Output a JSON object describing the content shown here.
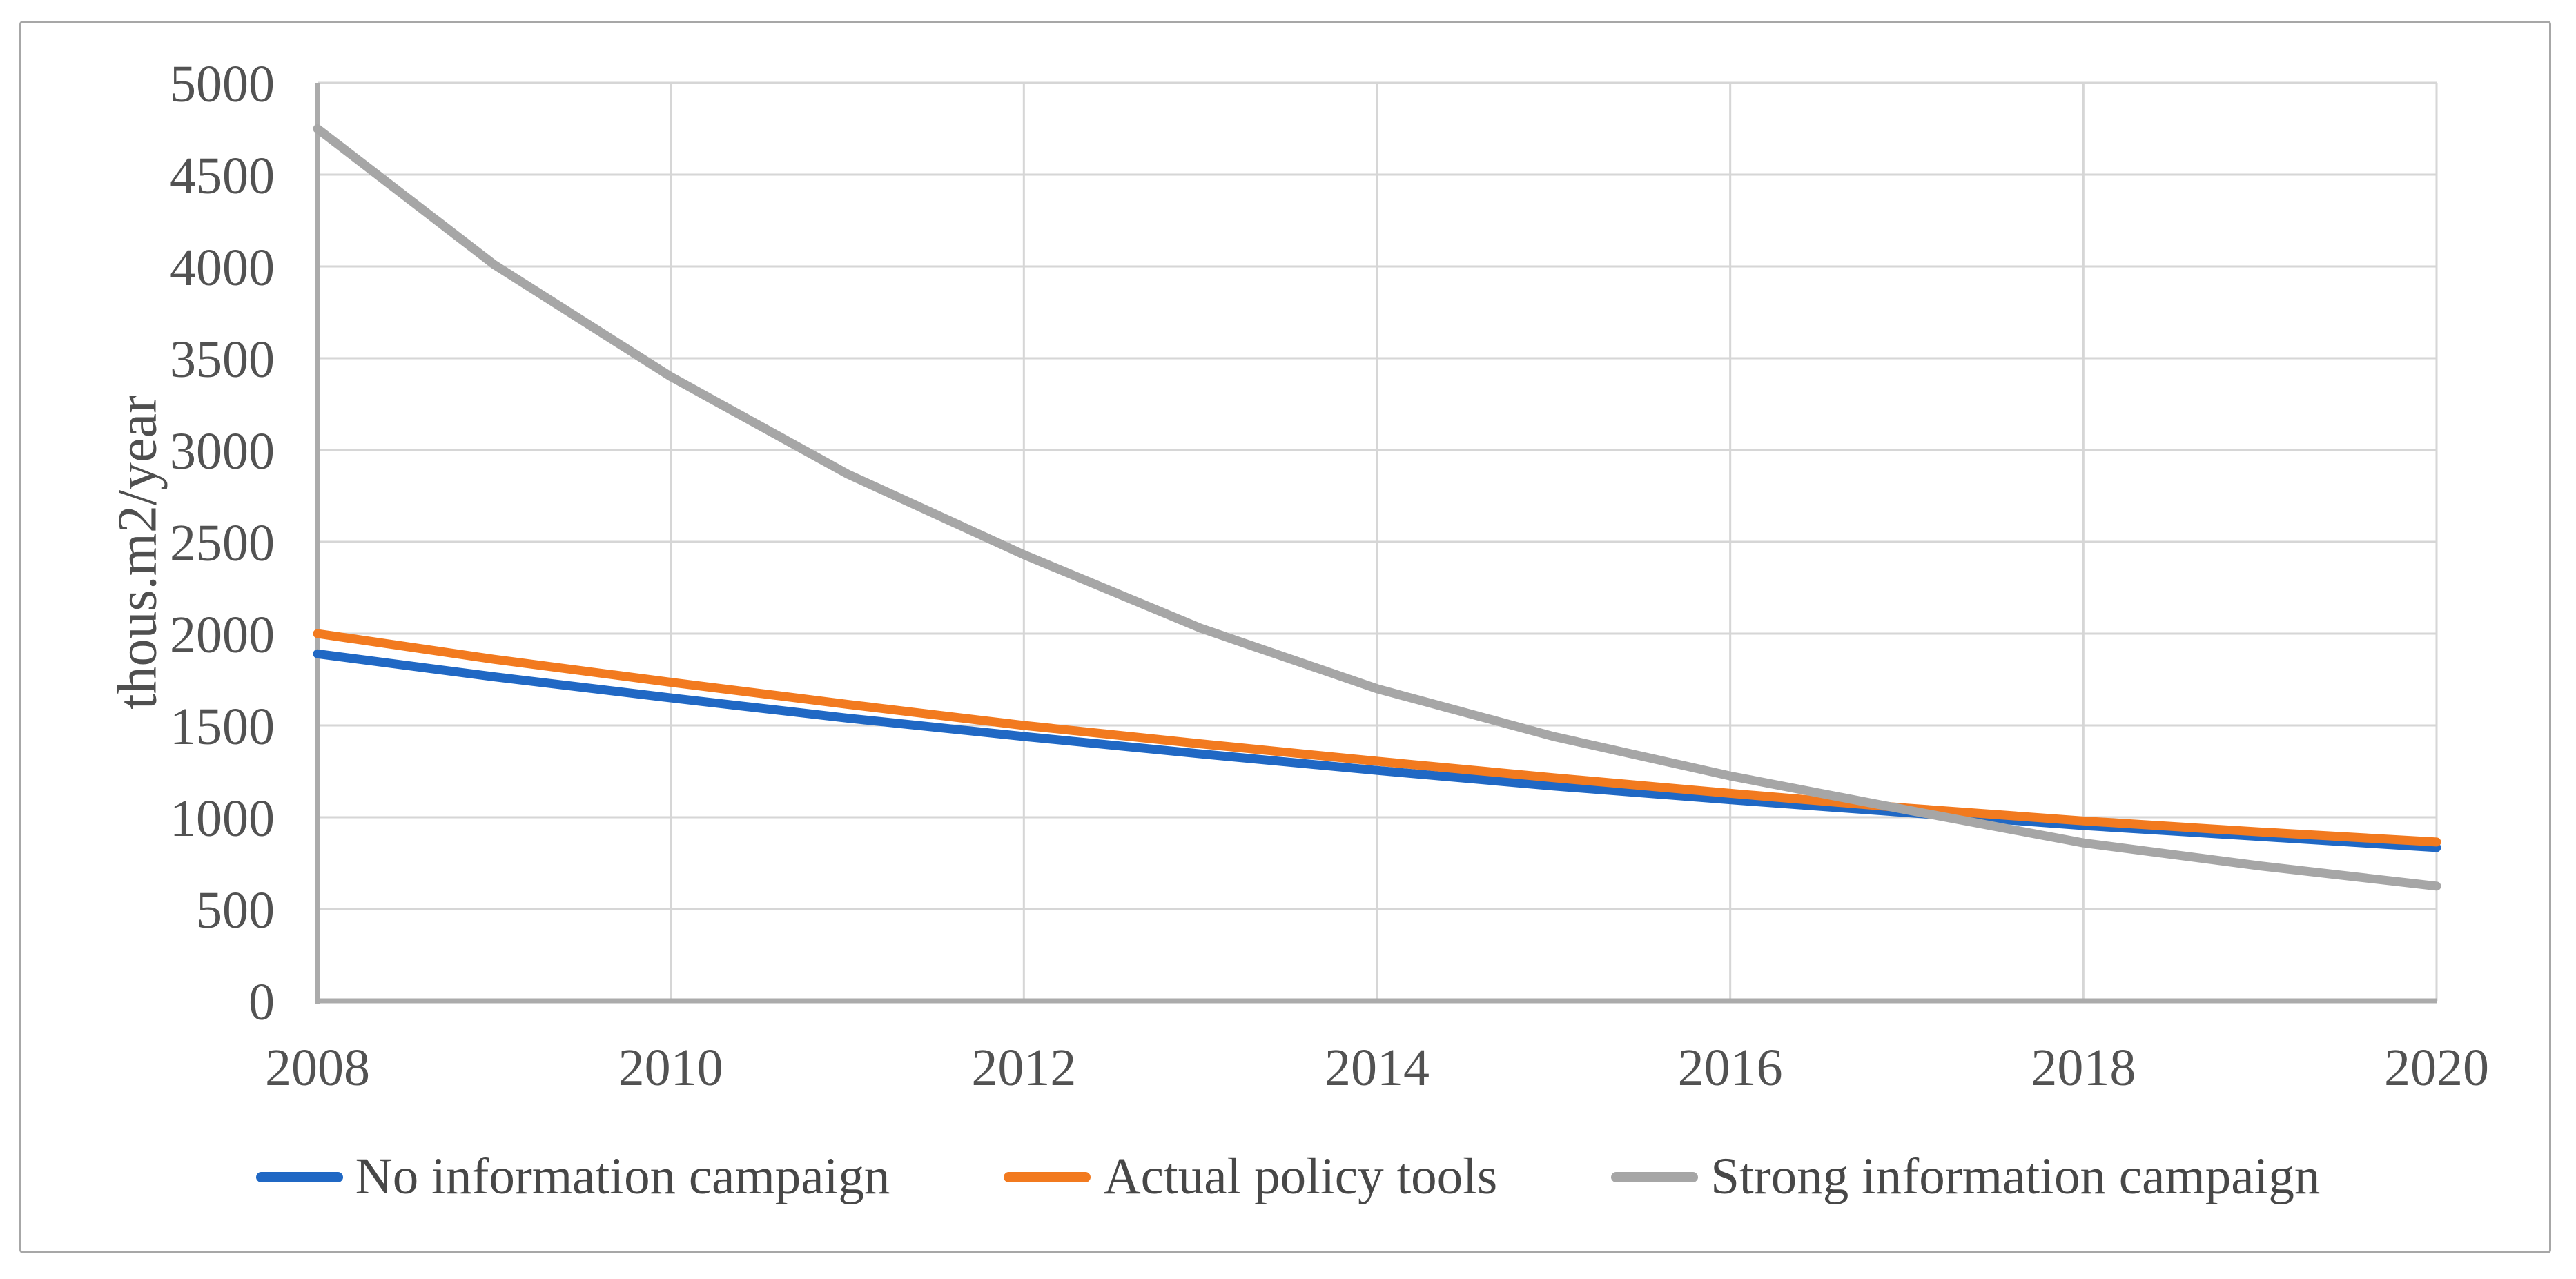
{
  "figure": {
    "background_color": "#ffffff",
    "frame_border_color": "#a7a7a7"
  },
  "chart_data": {
    "type": "line",
    "title": "",
    "xlabel": "",
    "ylabel": "thous.m2/year",
    "xlim": [
      2008,
      2020
    ],
    "ylim": [
      0,
      5000
    ],
    "grid": true,
    "legend_position": "bottom",
    "x_ticks": [
      2008,
      2010,
      2012,
      2014,
      2016,
      2018,
      2020
    ],
    "y_ticks": [
      0,
      500,
      1000,
      1500,
      2000,
      2500,
      3000,
      3500,
      4000,
      4500,
      5000
    ],
    "x": [
      2008,
      2009,
      2010,
      2011,
      2012,
      2013,
      2014,
      2015,
      2016,
      2017,
      2018,
      2019,
      2020
    ],
    "series": [
      {
        "name": "No information campaign",
        "color": "#2068c4",
        "values": [
          1890,
          1765,
          1650,
          1540,
          1440,
          1345,
          1255,
          1170,
          1095,
          1025,
          955,
          895,
          835
        ]
      },
      {
        "name": "Actual policy tools",
        "color": "#f27a1f",
        "values": [
          2000,
          1860,
          1735,
          1615,
          1500,
          1400,
          1305,
          1215,
          1130,
          1050,
          980,
          920,
          865
        ]
      },
      {
        "name": "Strong information campaign",
        "color": "#a6a6a6",
        "values": [
          4750,
          4010,
          3400,
          2870,
          2430,
          2030,
          1700,
          1440,
          1225,
          1040,
          860,
          735,
          625
        ]
      }
    ],
    "colors": {
      "gridline": "#d6d6d6",
      "axis": "#ababab",
      "tick_text": "#525252",
      "legend_text": "#474747"
    }
  }
}
